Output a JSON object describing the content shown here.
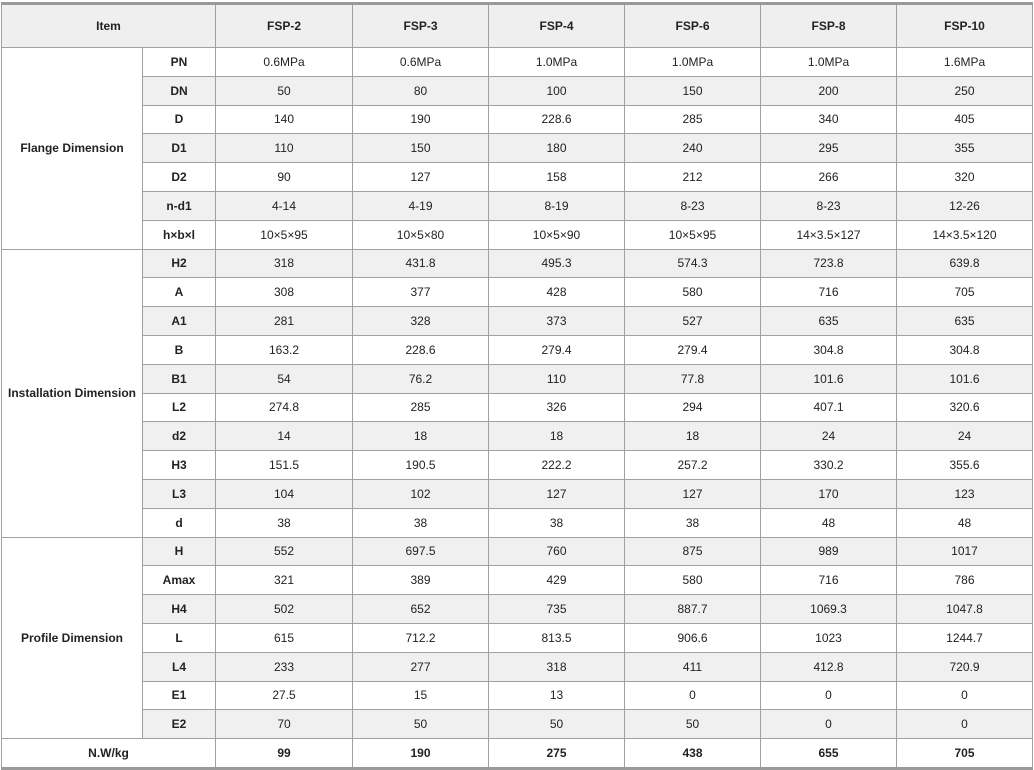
{
  "header": {
    "item": "Item",
    "models": [
      "FSP-2",
      "FSP-3",
      "FSP-4",
      "FSP-6",
      "FSP-8",
      "FSP-10"
    ]
  },
  "groups": [
    {
      "label": "Flange Dimension",
      "rows": [
        {
          "param": "PN",
          "values": [
            "0.6MPa",
            "0.6MPa",
            "1.0MPa",
            "1.0MPa",
            "1.0MPa",
            "1.6MPa"
          ]
        },
        {
          "param": "DN",
          "values": [
            "50",
            "80",
            "100",
            "150",
            "200",
            "250"
          ]
        },
        {
          "param": "D",
          "values": [
            "140",
            "190",
            "228.6",
            "285",
            "340",
            "405"
          ]
        },
        {
          "param": "D1",
          "values": [
            "110",
            "150",
            "180",
            "240",
            "295",
            "355"
          ]
        },
        {
          "param": "D2",
          "values": [
            "90",
            "127",
            "158",
            "212",
            "266",
            "320"
          ]
        },
        {
          "param": "n-d1",
          "values": [
            "4-14",
            "4-19",
            "8-19",
            "8-23",
            "8-23",
            "12-26"
          ]
        },
        {
          "param": "h×b×l",
          "values": [
            "10×5×95",
            "10×5×80",
            "10×5×90",
            "10×5×95",
            "14×3.5×127",
            "14×3.5×120"
          ]
        }
      ]
    },
    {
      "label": "Installation Dimension",
      "rows": [
        {
          "param": "H2",
          "values": [
            "318",
            "431.8",
            "495.3",
            "574.3",
            "723.8",
            "639.8"
          ]
        },
        {
          "param": "A",
          "values": [
            "308",
            "377",
            "428",
            "580",
            "716",
            "705"
          ]
        },
        {
          "param": "A1",
          "values": [
            "281",
            "328",
            "373",
            "527",
            "635",
            "635"
          ]
        },
        {
          "param": "B",
          "values": [
            "163.2",
            "228.6",
            "279.4",
            "279.4",
            "304.8",
            "304.8"
          ]
        },
        {
          "param": "B1",
          "values": [
            "54",
            "76.2",
            "110",
            "77.8",
            "101.6",
            "101.6"
          ]
        },
        {
          "param": "L2",
          "values": [
            "274.8",
            "285",
            "326",
            "294",
            "407.1",
            "320.6"
          ]
        },
        {
          "param": "d2",
          "values": [
            "14",
            "18",
            "18",
            "18",
            "24",
            "24"
          ]
        },
        {
          "param": "H3",
          "values": [
            "151.5",
            "190.5",
            "222.2",
            "257.2",
            "330.2",
            "355.6"
          ]
        },
        {
          "param": "L3",
          "values": [
            "104",
            "102",
            "127",
            "127",
            "170",
            "123"
          ]
        },
        {
          "param": "d",
          "values": [
            "38",
            "38",
            "38",
            "38",
            "48",
            "48"
          ]
        }
      ]
    },
    {
      "label": "Profile Dimension",
      "rows": [
        {
          "param": "H",
          "values": [
            "552",
            "697.5",
            "760",
            "875",
            "989",
            "1017"
          ]
        },
        {
          "param": "Amax",
          "values": [
            "321",
            "389",
            "429",
            "580",
            "716",
            "786"
          ]
        },
        {
          "param": "H4",
          "values": [
            "502",
            "652",
            "735",
            "887.7",
            "1069.3",
            "1047.8"
          ]
        },
        {
          "param": "L",
          "values": [
            "615",
            "712.2",
            "813.5",
            "906.6",
            "1023",
            "1244.7"
          ]
        },
        {
          "param": "L4",
          "values": [
            "233",
            "277",
            "318",
            "411",
            "412.8",
            "720.9"
          ]
        },
        {
          "param": "E1",
          "values": [
            "27.5",
            "15",
            "13",
            "0",
            "0",
            "0"
          ]
        },
        {
          "param": "E2",
          "values": [
            "70",
            "50",
            "50",
            "50",
            "0",
            "0"
          ]
        }
      ]
    }
  ],
  "footer": {
    "label": "N.W/kg",
    "values": [
      "99",
      "190",
      "275",
      "438",
      "655",
      "705"
    ]
  }
}
